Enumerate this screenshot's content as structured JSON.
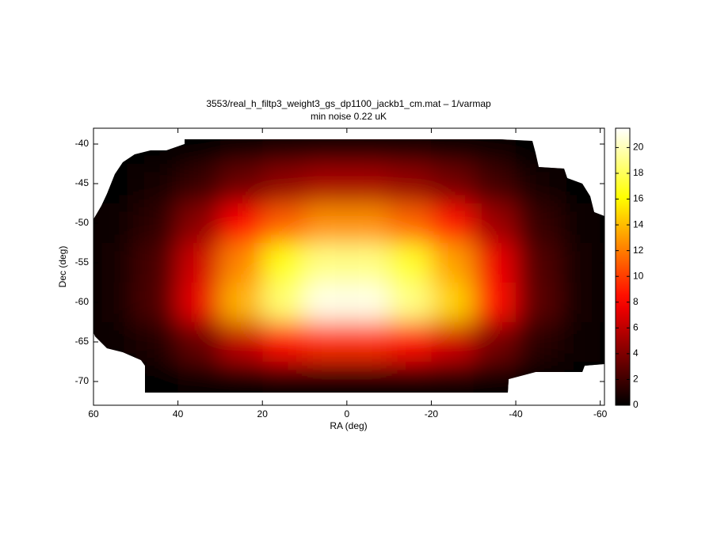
{
  "chart_data": {
    "type": "heatmap",
    "title": "3553/real_h_filtp3_weight3_gs_dp1100_jackb1_cm.mat – 1/varmap",
    "subtitle": "min noise 0.22 uK",
    "x_label": "RA (deg)",
    "y_label": "Dec (deg)",
    "x": [
      55,
      45,
      35,
      25,
      15,
      5,
      -5,
      -15,
      -25,
      -35,
      -45,
      -55
    ],
    "y": [
      -40,
      -45,
      -50,
      -55,
      -60,
      -65,
      -70
    ],
    "z": [
      [
        null,
        null,
        0.2,
        0.4,
        0.6,
        0.6,
        0.6,
        0.6,
        0.4,
        0.3,
        null,
        null
      ],
      [
        0.2,
        0.6,
        1.8,
        3.4,
        4.6,
        5.3,
        5.3,
        4.7,
        3.7,
        2.1,
        0.7,
        0.2
      ],
      [
        0.4,
        1.5,
        4.4,
        8.2,
        11.1,
        12.6,
        12.6,
        11.3,
        8.8,
        5.0,
        1.8,
        0.5
      ],
      [
        0.6,
        2.3,
        6.6,
        12.3,
        16.6,
        18.9,
        18.9,
        17.0,
        13.2,
        7.6,
        2.6,
        0.8
      ],
      [
        0.6,
        2.5,
        7.4,
        13.7,
        18.5,
        21.0,
        21.0,
        18.9,
        14.7,
        8.4,
        2.9,
        0.8
      ],
      [
        0.3,
        1.1,
        3.3,
        6.1,
        8.3,
        9.5,
        9.5,
        8.5,
        6.6,
        3.8,
        1.3,
        0.4
      ],
      [
        null,
        0.1,
        0.3,
        0.5,
        0.7,
        0.8,
        0.8,
        0.8,
        0.6,
        0.3,
        0.1,
        0.0
      ]
    ],
    "xlim": [
      60,
      -61
    ],
    "ylim": [
      -73,
      -38
    ],
    "xticks": [
      60,
      40,
      20,
      0,
      -20,
      -40,
      -60
    ],
    "yticks": [
      -70,
      -65,
      -60,
      -55,
      -50,
      -45,
      -40
    ],
    "colormap": "hot",
    "clim": [
      0,
      21.5
    ],
    "cticks": [
      0,
      2,
      4,
      6,
      8,
      10,
      12,
      14,
      16,
      18,
      20
    ]
  }
}
